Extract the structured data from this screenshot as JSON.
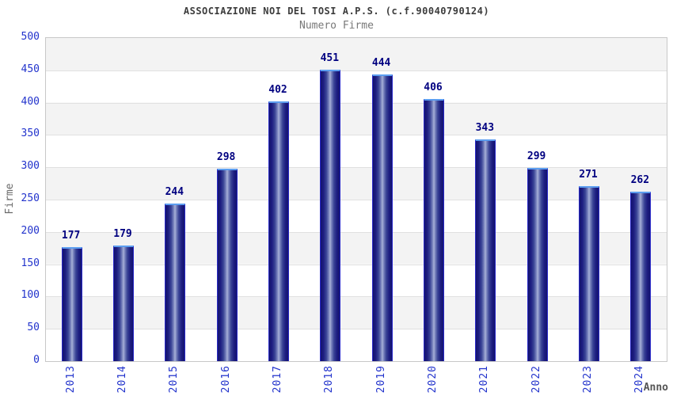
{
  "chart_data": {
    "type": "bar",
    "title": "ASSOCIAZIONE NOI DEL TOSI A.P.S. (c.f.90040790124)",
    "subtitle": "Numero Firme",
    "xlabel": "Anno",
    "ylabel": "Firme",
    "categories": [
      "2013",
      "2014",
      "2015",
      "2016",
      "2017",
      "2018",
      "2019",
      "2020",
      "2021",
      "2022",
      "2023",
      "2024"
    ],
    "values": [
      177,
      179,
      244,
      298,
      402,
      451,
      444,
      406,
      343,
      299,
      271,
      262
    ],
    "ylim": [
      0,
      500
    ],
    "ytick_step": 50,
    "yticks": [
      0,
      50,
      100,
      150,
      200,
      250,
      300,
      350,
      400,
      450,
      500
    ],
    "grid": "horizontal-bands-alternating",
    "legend_position": "none",
    "value_labels_shown": true,
    "bar_style": "cylindrical-gradient",
    "colors": {
      "bar_edge": "#14146e",
      "bar_center": "#a9b2d8",
      "bar_outline": "#2929c8",
      "bar_top_cap": "#5c9ef0",
      "tick_label": "#2233cc",
      "value_label": "#000080",
      "title": "#3c3c3c",
      "subtitle": "#787878",
      "axis_title": "#6a6a6a",
      "band_gray": "#f3f3f3",
      "band_white": "#ffffff",
      "plot_border": "#c8c8c8"
    }
  }
}
